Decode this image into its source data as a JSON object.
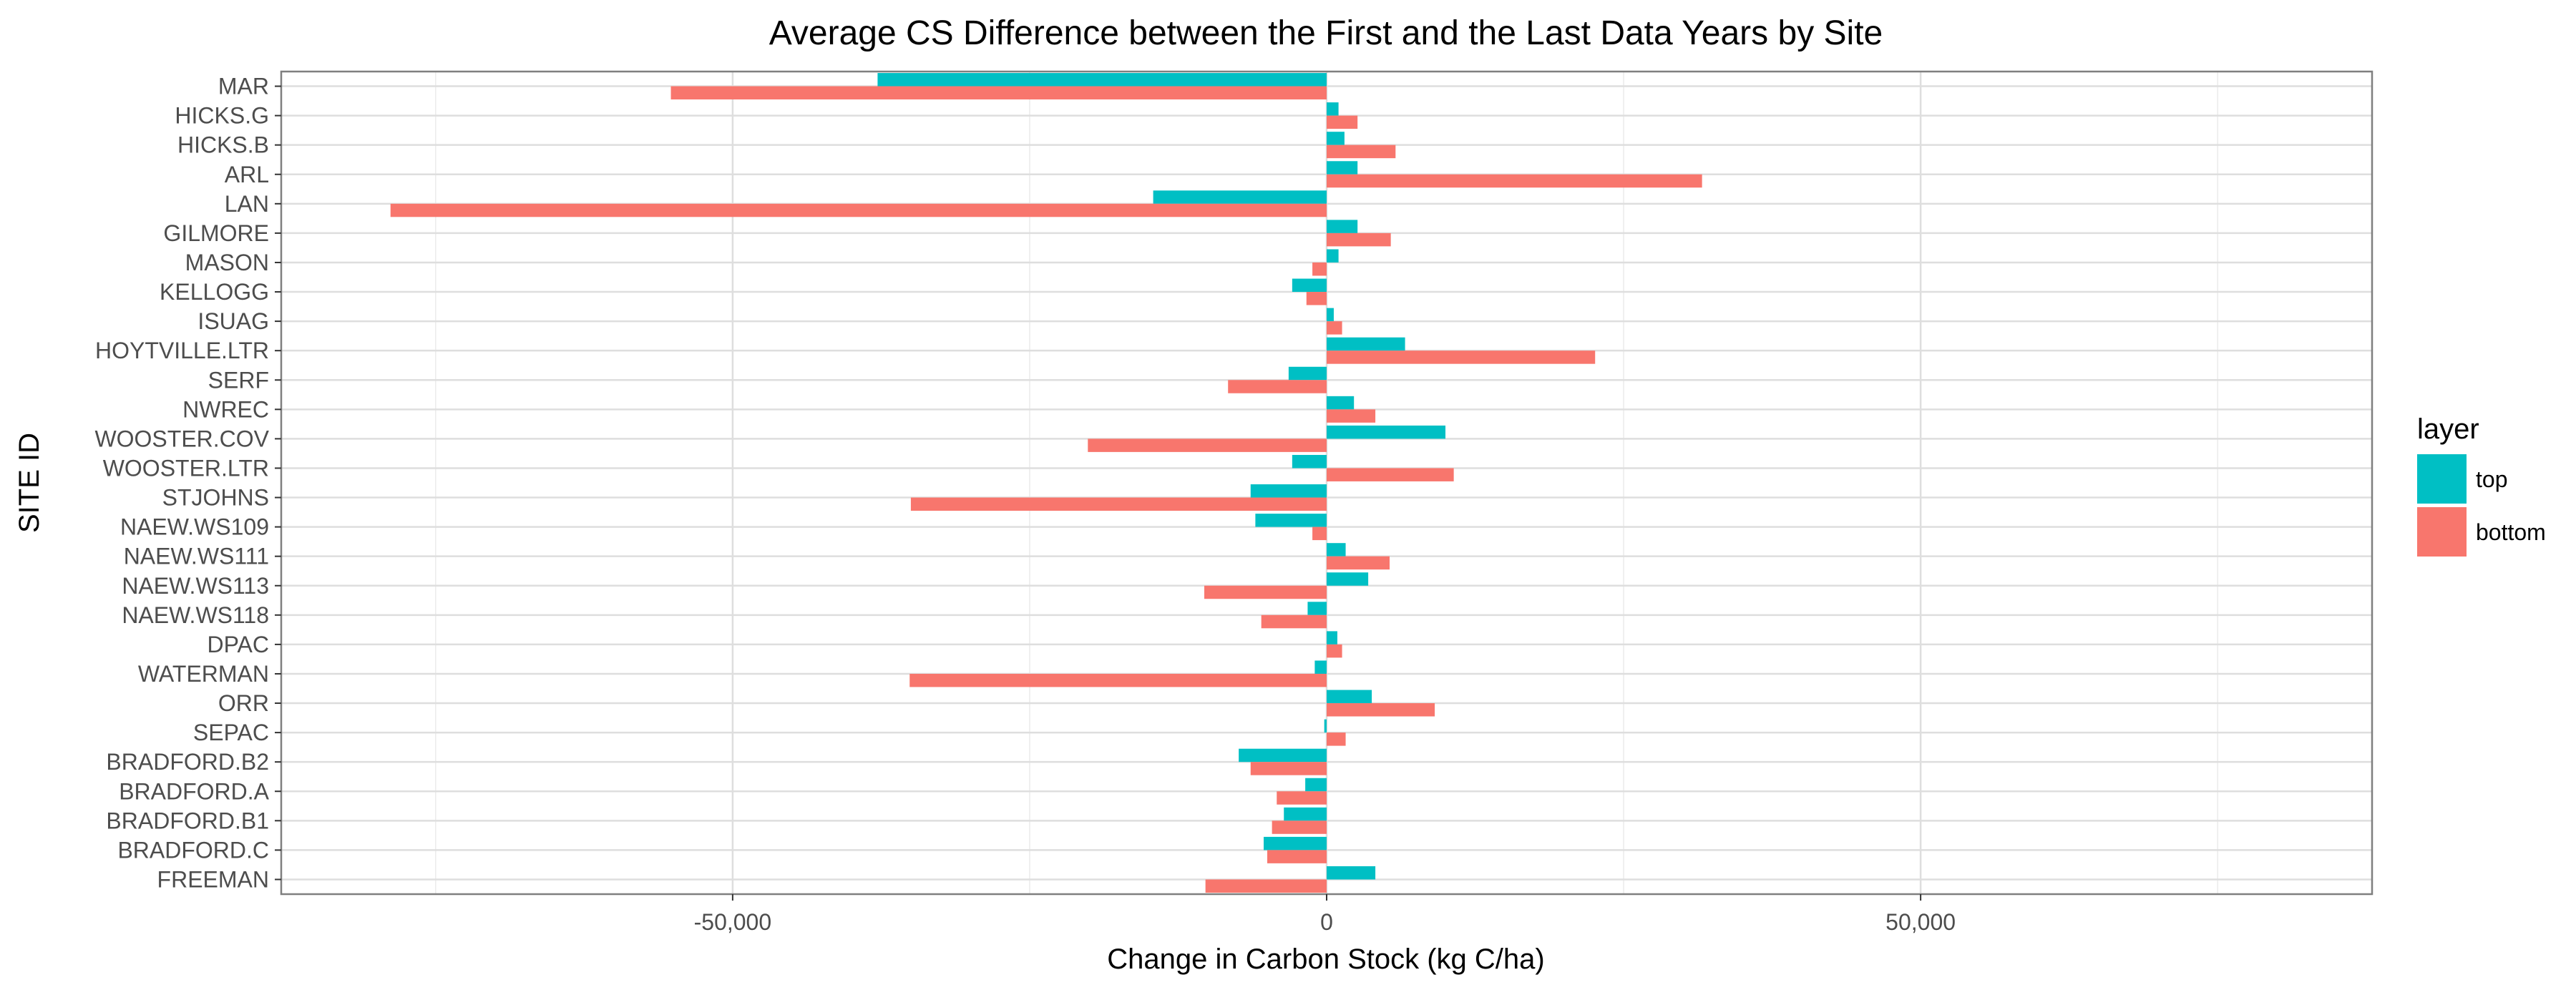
{
  "chart_data": {
    "type": "bar",
    "orientation": "horizontal",
    "title": "Average CS Difference between the First and the Last Data Years by Site",
    "xlabel": "Change in Carbon Stock (kg C/ha)",
    "ylabel": "SITE ID",
    "xlim": [
      -88000,
      88000
    ],
    "x_ticks": [
      -50000,
      0,
      50000
    ],
    "x_tick_labels": [
      "-50,000",
      "0",
      "50,000"
    ],
    "grid": true,
    "legend": {
      "title": "layer",
      "placement": "right",
      "entries": [
        "top",
        "bottom"
      ]
    },
    "colors": {
      "top": "#00BFC4",
      "bottom": "#F8766D"
    },
    "categories": [
      "MAR",
      "HICKS.G",
      "HICKS.B",
      "ARL",
      "LAN",
      "GILMORE",
      "MASON",
      "KELLOGG",
      "ISUAG",
      "HOYTVILLE.LTR",
      "SERF",
      "NWREC",
      "WOOSTER.COV",
      "WOOSTER.LTR",
      "STJOHNS",
      "NAEW.WS109",
      "NAEW.WS111",
      "NAEW.WS113",
      "NAEW.WS118",
      "DPAC",
      "WATERMAN",
      "ORR",
      "SEPAC",
      "BRADFORD.B2",
      "BRADFORD.A",
      "BRADFORD.B1",
      "BRADFORD.C",
      "FREEMAN"
    ],
    "series": [
      {
        "name": "top",
        "values": [
          -37800,
          1000,
          1500,
          2600,
          -14600,
          2600,
          1000,
          -2900,
          600,
          6600,
          -3200,
          2300,
          10000,
          -2900,
          -6400,
          -6000,
          1600,
          3500,
          -1600,
          900,
          -1000,
          3800,
          -200,
          -7400,
          -1800,
          -3600,
          -5300,
          4100
        ]
      },
      {
        "name": "bottom",
        "values": [
          -55200,
          2600,
          5800,
          31600,
          -78800,
          5400,
          -1200,
          -1700,
          1300,
          22600,
          -8300,
          4100,
          -20100,
          10700,
          -35000,
          -1200,
          5300,
          -10300,
          -5500,
          1300,
          -35100,
          9100,
          1600,
          -6400,
          -4200,
          -4600,
          -5000,
          -10200
        ]
      }
    ]
  }
}
